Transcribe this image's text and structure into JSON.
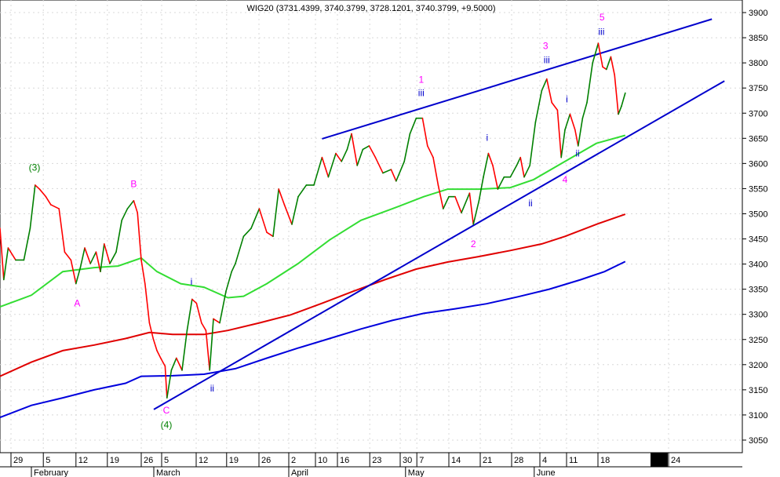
{
  "chart_data": {
    "type": "line",
    "title": "WIG20 (3731.4399, 3740.3799, 3728.1201, 3740.3799, +9.5000)",
    "xlabel": "",
    "ylabel": "",
    "x_unit": "bar index",
    "xlim": [
      0,
      118.25
    ],
    "ylim": [
      3025,
      3925
    ],
    "y_ticks": [
      3050,
      3100,
      3150,
      3200,
      3250,
      3300,
      3350,
      3400,
      3450,
      3500,
      3550,
      3600,
      3650,
      3700,
      3750,
      3800,
      3850,
      3900
    ],
    "grid": true,
    "x_ticks": [
      {
        "x": 1.75,
        "label": "29"
      },
      {
        "x": 6.9,
        "label": "5"
      },
      {
        "x": 12.1,
        "label": "12"
      },
      {
        "x": 17.1,
        "label": "19"
      },
      {
        "x": 22.5,
        "label": "26"
      },
      {
        "x": 25.75,
        "label": "5"
      },
      {
        "x": 31.25,
        "label": "12"
      },
      {
        "x": 36.1,
        "label": "19"
      },
      {
        "x": 41.25,
        "label": "26"
      },
      {
        "x": 46,
        "label": "2"
      },
      {
        "x": 50.25,
        "label": "10"
      },
      {
        "x": 53.75,
        "label": "16"
      },
      {
        "x": 58.9,
        "label": "23"
      },
      {
        "x": 63.75,
        "label": "30"
      },
      {
        "x": 66.4,
        "label": "7"
      },
      {
        "x": 71.5,
        "label": "14"
      },
      {
        "x": 76.5,
        "label": "21"
      },
      {
        "x": 81.5,
        "label": "28"
      },
      {
        "x": 86,
        "label": "4"
      },
      {
        "x": 90.25,
        "label": "11"
      },
      {
        "x": 95.25,
        "label": "18"
      },
      {
        "x": 106.5,
        "label": "24"
      }
    ],
    "months": [
      {
        "x": 5,
        "label": "February"
      },
      {
        "x": 24.5,
        "label": "March"
      },
      {
        "x": 46,
        "label": "April"
      },
      {
        "x": 64.6,
        "label": "May"
      },
      {
        "x": 85.1,
        "label": "June"
      }
    ],
    "series": [
      {
        "name": "WIG20",
        "colors": {
          "up": "#008000",
          "down": "#ff0000"
        },
        "x": [
          0,
          0.6,
          1.3,
          2.5,
          3.8,
          4.8,
          5.6,
          6.3,
          7.3,
          8.1,
          9.4,
          10.3,
          11.3,
          12.1,
          12.8,
          13.5,
          14.4,
          15.3,
          16,
          16.6,
          17.5,
          18.5,
          19.4,
          20.3,
          21.3,
          21.9,
          22.5,
          23.1,
          23.8,
          24.4,
          25,
          25.6,
          26.3,
          26.6,
          27.3,
          28.1,
          29,
          29.8,
          30.6,
          31.3,
          32.1,
          32.8,
          33.4,
          34,
          35,
          36,
          36.9,
          37.5,
          38.8,
          40,
          41.3,
          42.5,
          43.5,
          44.4,
          45.3,
          46.5,
          47.5,
          48.8,
          50,
          51.3,
          52.3,
          53.5,
          54.4,
          55.3,
          56,
          56.9,
          57.8,
          58.8,
          59.8,
          61,
          62.3,
          63.1,
          64.4,
          65.3,
          66.3,
          67.3,
          68.1,
          69,
          69.8,
          70.6,
          71.5,
          72.5,
          73.5,
          74.8,
          75.4,
          76.3,
          77,
          77.8,
          78.5,
          79.3,
          80.3,
          81.3,
          82.3,
          82.9,
          83.5,
          84.4,
          85.3,
          86.3,
          87.1,
          87.9,
          88.8,
          89.4,
          90,
          90.8,
          91.6,
          92.1,
          92.8,
          93.5,
          94.4,
          95.3,
          96,
          96.6,
          97.3,
          97.9,
          98.5,
          99,
          99.6
        ],
        "values": [
          3471,
          3369,
          3432,
          3408,
          3408,
          3471,
          3557,
          3549,
          3534,
          3518,
          3510,
          3424,
          3408,
          3361,
          3393,
          3432,
          3401,
          3424,
          3385,
          3440,
          3401,
          3424,
          3487,
          3510,
          3526,
          3502,
          3408,
          3361,
          3283,
          3252,
          3228,
          3213,
          3197,
          3134,
          3189,
          3213,
          3189,
          3268,
          3330,
          3322,
          3283,
          3268,
          3189,
          3291,
          3283,
          3346,
          3385,
          3401,
          3455,
          3471,
          3510,
          3463,
          3455,
          3549,
          3518,
          3479,
          3534,
          3557,
          3557,
          3612,
          3573,
          3620,
          3604,
          3628,
          3659,
          3596,
          3628,
          3635,
          3612,
          3581,
          3588,
          3565,
          3604,
          3659,
          3690,
          3690,
          3635,
          3612,
          3557,
          3510,
          3534,
          3534,
          3502,
          3541,
          3479,
          3526,
          3573,
          3620,
          3596,
          3549,
          3573,
          3573,
          3596,
          3612,
          3573,
          3596,
          3682,
          3745,
          3768,
          3721,
          3706,
          3612,
          3667,
          3698,
          3667,
          3635,
          3690,
          3721,
          3800,
          3839,
          3792,
          3787,
          3812,
          3776,
          3698,
          3714,
          3740
        ]
      },
      {
        "name": "MA short",
        "color": "#33dd33",
        "x": [
          0,
          5,
          10,
          15,
          18.8,
          22.5,
          25,
          28.8,
          32.5,
          36.3,
          38.8,
          42.5,
          47.5,
          52.5,
          57.5,
          62.5,
          67.5,
          71.3,
          76.3,
          81.3,
          85,
          90,
          95,
          99.6
        ],
        "values": [
          3315,
          3338,
          3385,
          3393,
          3396,
          3412,
          3385,
          3361,
          3354,
          3333,
          3336,
          3361,
          3401,
          3448,
          3487,
          3510,
          3534,
          3549,
          3549,
          3552,
          3568,
          3604,
          3640,
          3656
        ]
      },
      {
        "name": "MA medium",
        "color": "#e00000",
        "x": [
          0,
          5,
          10,
          15,
          20,
          23.8,
          27.5,
          32.5,
          36.3,
          41.3,
          46.3,
          51.3,
          56.3,
          61.3,
          66.3,
          71.3,
          76.3,
          81.3,
          86.3,
          90,
          95,
          99.6
        ],
        "values": [
          3177,
          3205,
          3228,
          3239,
          3252,
          3264,
          3260,
          3260,
          3268,
          3283,
          3299,
          3322,
          3346,
          3369,
          3390,
          3404,
          3415,
          3427,
          3440,
          3455,
          3479,
          3499
        ]
      },
      {
        "name": "MA long",
        "color": "#0000dd",
        "x": [
          0,
          5,
          10,
          15,
          20,
          22.5,
          27.5,
          32.5,
          37.5,
          42.5,
          47.5,
          52.5,
          57.5,
          62.5,
          67.5,
          72.5,
          77.5,
          82.5,
          87.5,
          92.5,
          96.3,
          99.6
        ],
        "values": [
          3095,
          3119,
          3134,
          3150,
          3163,
          3177,
          3178,
          3181,
          3192,
          3213,
          3233,
          3252,
          3271,
          3288,
          3302,
          3311,
          3321,
          3335,
          3350,
          3369,
          3385,
          3405
        ]
      }
    ],
    "trendlines": [
      {
        "name": "support-line",
        "color": "#0000cc",
        "from": [
          24.5,
          3111
        ],
        "to": [
          115.4,
          3764
        ]
      },
      {
        "name": "resistance-line",
        "color": "#0000cc",
        "from": [
          51.3,
          3649
        ],
        "to": [
          113.4,
          3887
        ]
      }
    ],
    "annotations": [
      {
        "text": "(3)",
        "x": 5.5,
        "y": 3592,
        "color": "#008000"
      },
      {
        "text": "A",
        "x": 12.3,
        "y": 3322,
        "color": "#ff00ff"
      },
      {
        "text": "B",
        "x": 21.3,
        "y": 3559,
        "color": "#ff00ff"
      },
      {
        "text": "i",
        "x": 30.5,
        "y": 3365,
        "color": "#0000cc"
      },
      {
        "text": "C",
        "x": 26.5,
        "y": 3109,
        "color": "#ff00ff"
      },
      {
        "text": "(4)",
        "x": 26.5,
        "y": 3080,
        "color": "#008000"
      },
      {
        "text": "ii",
        "x": 33.8,
        "y": 3153,
        "color": "#0000cc"
      },
      {
        "text": "1",
        "x": 67.1,
        "y": 3767,
        "color": "#ff00ff"
      },
      {
        "text": "iii",
        "x": 67.1,
        "y": 3740,
        "color": "#0000cc"
      },
      {
        "text": "i",
        "x": 77.6,
        "y": 3651,
        "color": "#0000cc"
      },
      {
        "text": "2",
        "x": 75.4,
        "y": 3440,
        "color": "#ff00ff"
      },
      {
        "text": "ii",
        "x": 84.5,
        "y": 3521,
        "color": "#0000cc"
      },
      {
        "text": "3",
        "x": 86.9,
        "y": 3834,
        "color": "#ff00ff"
      },
      {
        "text": "iii",
        "x": 87.1,
        "y": 3806,
        "color": "#0000cc"
      },
      {
        "text": "i",
        "x": 90.3,
        "y": 3728,
        "color": "#0000cc"
      },
      {
        "text": "ii",
        "x": 92,
        "y": 3620,
        "color": "#0000cc"
      },
      {
        "text": "4",
        "x": 90,
        "y": 3568,
        "color": "#ff00ff"
      },
      {
        "text": "5",
        "x": 95.9,
        "y": 3891,
        "color": "#ff00ff"
      },
      {
        "text": "iii",
        "x": 95.8,
        "y": 3862,
        "color": "#0000cc"
      }
    ]
  }
}
